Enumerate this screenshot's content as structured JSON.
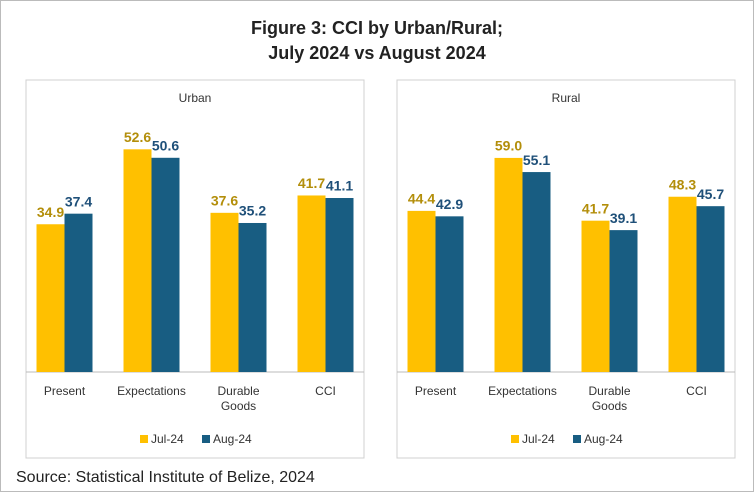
{
  "figure_title": [
    "Figure 3: CCI by Urban/Rural;",
    "July 2024 vs August 2024"
  ],
  "source": "Source: Statistical Institute of Belize, 2024",
  "chart_data": [
    {
      "type": "bar",
      "title": "Urban",
      "categories": [
        "Present",
        "Expectations",
        "Durable Goods",
        "CCI"
      ],
      "series": [
        {
          "name": "Jul-24",
          "color": "#ffc000",
          "label_color": "#b38e0a",
          "values": [
            34.9,
            52.6,
            37.6,
            41.7
          ],
          "value_labels": [
            "34.9",
            "52.6",
            "37.6",
            "41.7"
          ]
        },
        {
          "name": "Aug-24",
          "color": "#185d82",
          "label_color": "#1f5079",
          "values": [
            37.4,
            50.6,
            35.2,
            41.1
          ],
          "value_labels": [
            "37.4",
            "50.6",
            "35.2",
            "41.1"
          ]
        }
      ],
      "ylim": [
        0,
        60
      ],
      "legend": "bottom"
    },
    {
      "type": "bar",
      "title": "Rural",
      "categories": [
        "Present",
        "Expectations",
        "Durable Goods",
        "CCI"
      ],
      "series": [
        {
          "name": "Jul-24",
          "color": "#ffc000",
          "label_color": "#b38e0a",
          "values": [
            44.4,
            59.0,
            41.7,
            48.3
          ],
          "value_labels": [
            "44.4",
            "59.0",
            "41.7",
            "48.3"
          ]
        },
        {
          "name": "Aug-24",
          "color": "#185d82",
          "label_color": "#1f5079",
          "values": [
            42.9,
            55.1,
            39.1,
            45.7
          ],
          "value_labels": [
            "42.9",
            "55.1",
            "39.1",
            "45.7"
          ]
        }
      ],
      "ylim": [
        0,
        70
      ],
      "legend": "bottom"
    }
  ]
}
